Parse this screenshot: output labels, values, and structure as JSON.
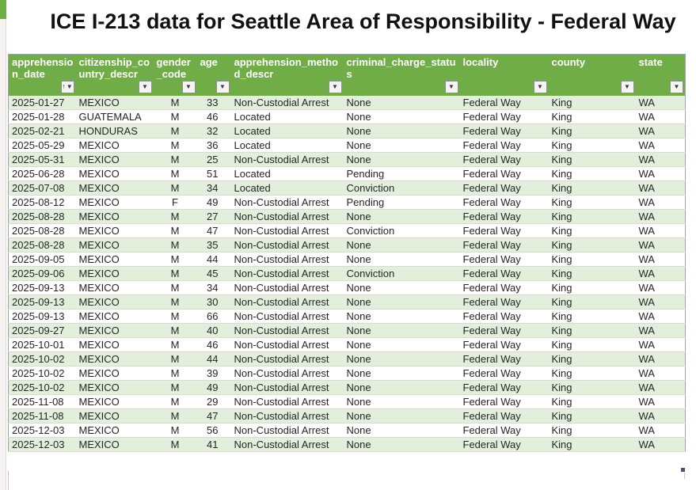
{
  "title": "ICE I-213 data for Seattle Area of Responsibility - Federal Way",
  "colors": {
    "header_green": "#70ad47",
    "band_green": "#e2efda",
    "header_text": "#ffffff",
    "fill_handle": "#44546a"
  },
  "icons": {
    "filter": "▼",
    "sort_ascending": "↑"
  },
  "table": {
    "columns": [
      {
        "id": "apprehension_date",
        "label": "apprehension_date",
        "align": "left",
        "sorted": true
      },
      {
        "id": "citizenship_country_descr",
        "label": "citizenship_country_descr",
        "align": "left",
        "sorted": false
      },
      {
        "id": "gender_code",
        "label": "gender_code",
        "align": "center",
        "sorted": false
      },
      {
        "id": "age",
        "label": "age",
        "align": "right",
        "sorted": false
      },
      {
        "id": "apprehension_method_descr",
        "label": "apprehension_method_descr",
        "align": "left",
        "sorted": false
      },
      {
        "id": "criminal_charge_status",
        "label": "criminal_charge_status",
        "align": "left",
        "sorted": false
      },
      {
        "id": "locality",
        "label": "locality",
        "align": "left",
        "sorted": false
      },
      {
        "id": "county",
        "label": "county",
        "align": "left",
        "sorted": false
      },
      {
        "id": "state",
        "label": "state",
        "align": "left",
        "sorted": false
      }
    ],
    "rows": [
      [
        "2025-01-27",
        "MEXICO",
        "M",
        "33",
        "Non-Custodial Arrest",
        "None",
        "Federal Way",
        "King",
        "WA"
      ],
      [
        "2025-01-28",
        "GUATEMALA",
        "M",
        "46",
        "Located",
        "None",
        "Federal Way",
        "King",
        "WA"
      ],
      [
        "2025-02-21",
        "HONDURAS",
        "M",
        "32",
        "Located",
        "None",
        "Federal Way",
        "King",
        "WA"
      ],
      [
        "2025-05-29",
        "MEXICO",
        "M",
        "36",
        "Located",
        "None",
        "Federal Way",
        "King",
        "WA"
      ],
      [
        "2025-05-31",
        "MEXICO",
        "M",
        "25",
        "Non-Custodial Arrest",
        "None",
        "Federal Way",
        "King",
        "WA"
      ],
      [
        "2025-06-28",
        "MEXICO",
        "M",
        "51",
        "Located",
        "Pending",
        "Federal Way",
        "King",
        "WA"
      ],
      [
        "2025-07-08",
        "MEXICO",
        "M",
        "34",
        "Located",
        "Conviction",
        "Federal Way",
        "King",
        "WA"
      ],
      [
        "2025-08-12",
        "MEXICO",
        "F",
        "49",
        "Non-Custodial Arrest",
        "Pending",
        "Federal Way",
        "King",
        "WA"
      ],
      [
        "2025-08-28",
        "MEXICO",
        "M",
        "27",
        "Non-Custodial Arrest",
        "None",
        "Federal Way",
        "King",
        "WA"
      ],
      [
        "2025-08-28",
        "MEXICO",
        "M",
        "47",
        "Non-Custodial Arrest",
        "Conviction",
        "Federal Way",
        "King",
        "WA"
      ],
      [
        "2025-08-28",
        "MEXICO",
        "M",
        "35",
        "Non-Custodial Arrest",
        "None",
        "Federal Way",
        "King",
        "WA"
      ],
      [
        "2025-09-05",
        "MEXICO",
        "M",
        "44",
        "Non-Custodial Arrest",
        "None",
        "Federal Way",
        "King",
        "WA"
      ],
      [
        "2025-09-06",
        "MEXICO",
        "M",
        "45",
        "Non-Custodial Arrest",
        "Conviction",
        "Federal Way",
        "King",
        "WA"
      ],
      [
        "2025-09-13",
        "MEXICO",
        "M",
        "34",
        "Non-Custodial Arrest",
        "None",
        "Federal Way",
        "King",
        "WA"
      ],
      [
        "2025-09-13",
        "MEXICO",
        "M",
        "30",
        "Non-Custodial Arrest",
        "None",
        "Federal Way",
        "King",
        "WA"
      ],
      [
        "2025-09-13",
        "MEXICO",
        "M",
        "66",
        "Non-Custodial Arrest",
        "None",
        "Federal Way",
        "King",
        "WA"
      ],
      [
        "2025-09-27",
        "MEXICO",
        "M",
        "40",
        "Non-Custodial Arrest",
        "None",
        "Federal Way",
        "King",
        "WA"
      ],
      [
        "2025-10-01",
        "MEXICO",
        "M",
        "46",
        "Non-Custodial Arrest",
        "None",
        "Federal Way",
        "King",
        "WA"
      ],
      [
        "2025-10-02",
        "MEXICO",
        "M",
        "44",
        "Non-Custodial Arrest",
        "None",
        "Federal Way",
        "King",
        "WA"
      ],
      [
        "2025-10-02",
        "MEXICO",
        "M",
        "39",
        "Non-Custodial Arrest",
        "None",
        "Federal Way",
        "King",
        "WA"
      ],
      [
        "2025-10-02",
        "MEXICO",
        "M",
        "49",
        "Non-Custodial Arrest",
        "None",
        "Federal Way",
        "King",
        "WA"
      ],
      [
        "2025-11-08",
        "MEXICO",
        "M",
        "29",
        "Non-Custodial Arrest",
        "None",
        "Federal Way",
        "King",
        "WA"
      ],
      [
        "2025-11-08",
        "MEXICO",
        "M",
        "47",
        "Non-Custodial Arrest",
        "None",
        "Federal Way",
        "King",
        "WA"
      ],
      [
        "2025-12-03",
        "MEXICO",
        "M",
        "56",
        "Non-Custodial Arrest",
        "None",
        "Federal Way",
        "King",
        "WA"
      ],
      [
        "2025-12-03",
        "MEXICO",
        "M",
        "41",
        "Non-Custodial Arrest",
        "None",
        "Federal Way",
        "King",
        "WA"
      ]
    ]
  }
}
